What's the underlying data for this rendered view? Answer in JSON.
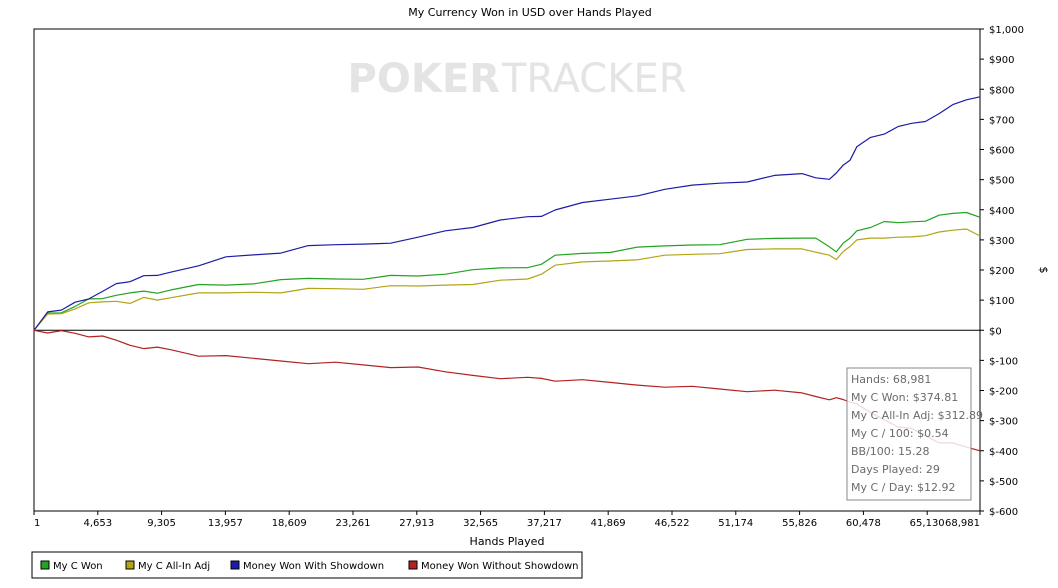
{
  "chart_data": {
    "type": "line",
    "title": "My Currency Won in USD over Hands Played",
    "xlabel": "Hands Played",
    "ylabel": "$",
    "watermark": {
      "part1": "POKER",
      "part2": "TRACKER"
    },
    "xlim": [
      1,
      68981
    ],
    "ylim": [
      -600,
      1000
    ],
    "x_ticks": [
      "1",
      "4,653",
      "9,305",
      "13,957",
      "18,609",
      "23,261",
      "27,913",
      "32,565",
      "37,217",
      "41,869",
      "46,522",
      "51,174",
      "55,826",
      "60,478",
      "65,130",
      "68,981"
    ],
    "x_tick_values": [
      1,
      4653,
      9305,
      13957,
      18609,
      23261,
      27913,
      32565,
      37217,
      41869,
      46522,
      51174,
      55826,
      60478,
      65130,
      68981
    ],
    "y_ticks": [
      "$1,000",
      "$900",
      "$800",
      "$700",
      "$600",
      "$500",
      "$400",
      "$300",
      "$200",
      "$100",
      "$0",
      "$-100",
      "$-200",
      "$-300",
      "$-400",
      "$-500",
      "$-600"
    ],
    "y_tick_values": [
      1000,
      900,
      800,
      700,
      600,
      500,
      400,
      300,
      200,
      100,
      0,
      -100,
      -200,
      -300,
      -400,
      -500,
      -600
    ],
    "grid": false,
    "legend_position": "bottom-left",
    "series": [
      {
        "name": "My C Won",
        "color": "#22a322",
        "x": [
          1,
          1000,
          2000,
          3000,
          4000,
          5000,
          6000,
          7000,
          8000,
          9000,
          10000,
          12000,
          14000,
          16000,
          18000,
          20000,
          22000,
          24000,
          26000,
          28000,
          30000,
          32000,
          34000,
          36000,
          37000,
          38000,
          40000,
          42000,
          44000,
          46000,
          48000,
          50000,
          52000,
          54000,
          56000,
          57000,
          58000,
          58500,
          59000,
          59500,
          60000,
          61000,
          62000,
          63000,
          64000,
          65000,
          66000,
          67000,
          68000,
          68981
        ],
        "y": [
          0,
          55,
          60,
          85,
          100,
          105,
          120,
          118,
          128,
          125,
          140,
          148,
          150,
          158,
          162,
          170,
          172,
          175,
          178,
          180,
          190,
          195,
          205,
          210,
          225,
          245,
          255,
          262,
          270,
          278,
          285,
          290,
          298,
          305,
          310,
          300,
          275,
          262,
          295,
          302,
          330,
          345,
          355,
          355,
          362,
          368,
          378,
          388,
          395,
          375
        ]
      },
      {
        "name": "My C All-In Adj",
        "color": "#b2a414",
        "x": [
          1,
          1000,
          2000,
          3000,
          4000,
          5000,
          6000,
          7000,
          8000,
          9000,
          10000,
          12000,
          14000,
          16000,
          18000,
          20000,
          22000,
          24000,
          26000,
          28000,
          30000,
          32000,
          34000,
          36000,
          37000,
          38000,
          40000,
          42000,
          44000,
          46000,
          48000,
          50000,
          52000,
          54000,
          56000,
          57000,
          58000,
          58500,
          59000,
          59500,
          60000,
          61000,
          62000,
          63000,
          64000,
          65000,
          66000,
          67000,
          68000,
          68981
        ],
        "y": [
          0,
          50,
          55,
          75,
          85,
          92,
          98,
          95,
          105,
          100,
          112,
          118,
          122,
          128,
          130,
          135,
          138,
          140,
          142,
          145,
          152,
          158,
          162,
          170,
          190,
          210,
          225,
          232,
          240,
          245,
          252,
          258,
          262,
          268,
          272,
          265,
          245,
          235,
          265,
          272,
          298,
          308,
          312,
          305,
          310,
          318,
          320,
          330,
          338,
          313
        ]
      },
      {
        "name": "Money Won With Showdown",
        "color": "#1c1ca8",
        "x": [
          1,
          1000,
          2000,
          3000,
          4000,
          5000,
          6000,
          7000,
          8000,
          9000,
          10000,
          12000,
          14000,
          16000,
          18000,
          20000,
          22000,
          24000,
          26000,
          28000,
          30000,
          32000,
          34000,
          36000,
          37000,
          38000,
          40000,
          42000,
          44000,
          46000,
          48000,
          50000,
          52000,
          54000,
          56000,
          57000,
          58000,
          58500,
          59000,
          59500,
          60000,
          61000,
          62000,
          63000,
          64000,
          65000,
          66000,
          67000,
          68000,
          68981
        ],
        "y": [
          0,
          55,
          65,
          95,
          110,
          125,
          155,
          165,
          175,
          180,
          195,
          220,
          240,
          250,
          260,
          275,
          282,
          288,
          295,
          305,
          330,
          345,
          360,
          375,
          380,
          405,
          420,
          435,
          450,
          462,
          480,
          490,
          498,
          510,
          520,
          510,
          495,
          520,
          550,
          570,
          605,
          640,
          655,
          670,
          685,
          695,
          725,
          745,
          765,
          775
        ]
      },
      {
        "name": "Money Won Without Showdown",
        "color": "#b22222",
        "x": [
          1,
          1000,
          2000,
          3000,
          4000,
          5000,
          6000,
          7000,
          8000,
          9000,
          10000,
          12000,
          14000,
          16000,
          18000,
          20000,
          22000,
          24000,
          26000,
          28000,
          30000,
          32000,
          34000,
          36000,
          37000,
          38000,
          40000,
          42000,
          44000,
          46000,
          48000,
          50000,
          52000,
          54000,
          56000,
          57000,
          58000,
          58500,
          59000,
          59500,
          60000,
          61000,
          62000,
          63000,
          64000,
          65000,
          66000,
          67000,
          68000,
          68981
        ],
        "y": [
          0,
          -3,
          -5,
          -10,
          -18,
          -25,
          -35,
          -48,
          -55,
          -60,
          -65,
          -82,
          -90,
          -95,
          -100,
          -105,
          -110,
          -115,
          -120,
          -128,
          -140,
          -148,
          -155,
          -160,
          -160,
          -165,
          -170,
          -175,
          -180,
          -183,
          -190,
          -195,
          -200,
          -205,
          -210,
          -218,
          -225,
          -228,
          -230,
          -235,
          -250,
          -275,
          -295,
          -315,
          -330,
          -350,
          -370,
          -380,
          -390,
          -400
        ]
      }
    ],
    "tooltip": [
      "Hands: 68,981",
      "My C Won: $374.81",
      "My C All-In Adj: $312.89",
      "My C / 100: $0.54",
      "BB/100: 15.28",
      "Days Played: 29",
      "My C / Day: $12.92"
    ]
  }
}
